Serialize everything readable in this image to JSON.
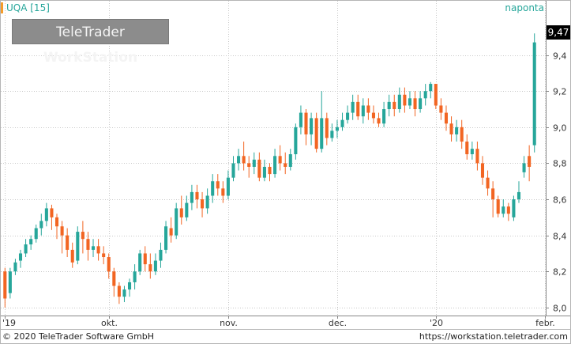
{
  "header": {
    "symbol": "UQA [15]",
    "period": "naponta",
    "logo_light": "TeleTrader",
    "logo_bold": "WorkStation",
    "last_price": "9,47"
  },
  "footer": {
    "copyright": "© 2020 TeleTrader Software GmbH",
    "url": "https://workstation.teletrader.com"
  },
  "colors": {
    "up": "#26a69a",
    "down": "#f26522",
    "grid": "#c8c8c8"
  },
  "chart_data": {
    "type": "candlestick",
    "ylim": [
      7.96,
      9.67
    ],
    "yticks": [
      "8,0",
      "8,2",
      "8,4",
      "8,6",
      "8,8",
      "9,0",
      "9,2",
      "9,4"
    ],
    "ytick_values": [
      8.0,
      8.2,
      8.4,
      8.6,
      8.8,
      9.0,
      9.2,
      9.4
    ],
    "xtick_labels": [
      "'19",
      "okt.",
      "nov.",
      "dec.",
      "'20",
      "febr."
    ],
    "xtick_index": [
      0,
      20,
      43,
      64,
      83,
      104
    ],
    "candles": [
      [
        8.2,
        8.05,
        8.22,
        8.0
      ],
      [
        8.08,
        8.2,
        8.22,
        8.05
      ],
      [
        8.2,
        8.25,
        8.27,
        8.18
      ],
      [
        8.26,
        8.3,
        8.32,
        8.22
      ],
      [
        8.3,
        8.35,
        8.38,
        8.28
      ],
      [
        8.35,
        8.38,
        8.4,
        8.32
      ],
      [
        8.38,
        8.44,
        8.46,
        8.36
      ],
      [
        8.44,
        8.48,
        8.52,
        8.4
      ],
      [
        8.48,
        8.55,
        8.58,
        8.45
      ],
      [
        8.55,
        8.5,
        8.57,
        8.43
      ],
      [
        8.5,
        8.45,
        8.52,
        8.38
      ],
      [
        8.45,
        8.4,
        8.48,
        8.3
      ],
      [
        8.4,
        8.32,
        8.44,
        8.28
      ],
      [
        8.32,
        8.25,
        8.36,
        8.22
      ],
      [
        8.26,
        8.42,
        8.45,
        8.24
      ],
      [
        8.42,
        8.38,
        8.48,
        8.3
      ],
      [
        8.38,
        8.32,
        8.42,
        8.26
      ],
      [
        8.32,
        8.34,
        8.38,
        8.28
      ],
      [
        8.34,
        8.3,
        8.38,
        8.26
      ],
      [
        8.3,
        8.28,
        8.34,
        8.24
      ],
      [
        8.28,
        8.2,
        8.3,
        8.16
      ],
      [
        8.2,
        8.12,
        8.22,
        8.06
      ],
      [
        8.12,
        8.06,
        8.14,
        8.02
      ],
      [
        8.06,
        8.1,
        8.12,
        8.03
      ],
      [
        8.1,
        8.14,
        8.16,
        8.06
      ],
      [
        8.14,
        8.2,
        8.24,
        8.1
      ],
      [
        8.2,
        8.3,
        8.32,
        8.18
      ],
      [
        8.3,
        8.24,
        8.34,
        8.2
      ],
      [
        8.24,
        8.2,
        8.3,
        8.16
      ],
      [
        8.2,
        8.26,
        8.3,
        8.18
      ],
      [
        8.26,
        8.32,
        8.36,
        8.22
      ],
      [
        8.32,
        8.45,
        8.48,
        8.3
      ],
      [
        8.44,
        8.4,
        8.5,
        8.36
      ],
      [
        8.4,
        8.55,
        8.58,
        8.38
      ],
      [
        8.55,
        8.5,
        8.62,
        8.46
      ],
      [
        8.5,
        8.58,
        8.62,
        8.48
      ],
      [
        8.58,
        8.64,
        8.68,
        8.54
      ],
      [
        8.64,
        8.6,
        8.68,
        8.55
      ],
      [
        8.6,
        8.55,
        8.64,
        8.5
      ],
      [
        8.55,
        8.62,
        8.66,
        8.52
      ],
      [
        8.62,
        8.7,
        8.74,
        8.58
      ],
      [
        8.7,
        8.66,
        8.74,
        8.62
      ],
      [
        8.66,
        8.62,
        8.7,
        8.58
      ],
      [
        8.62,
        8.72,
        8.76,
        8.6
      ],
      [
        8.72,
        8.8,
        8.84,
        8.7
      ],
      [
        8.8,
        8.84,
        8.88,
        8.76
      ],
      [
        8.84,
        8.8,
        8.92,
        8.76
      ],
      [
        8.8,
        8.78,
        8.84,
        8.72
      ],
      [
        8.78,
        8.82,
        8.86,
        8.74
      ],
      [
        8.82,
        8.72,
        8.86,
        8.7
      ],
      [
        8.72,
        8.78,
        8.82,
        8.7
      ],
      [
        8.78,
        8.74,
        8.8,
        8.7
      ],
      [
        8.74,
        8.84,
        8.88,
        8.72
      ],
      [
        8.84,
        8.8,
        8.9,
        8.76
      ],
      [
        8.8,
        8.78,
        8.86,
        8.74
      ],
      [
        8.78,
        8.85,
        8.88,
        8.76
      ],
      [
        8.85,
        9.0,
        9.02,
        8.82
      ],
      [
        9.0,
        9.08,
        9.12,
        8.96
      ],
      [
        9.08,
        8.96,
        9.1,
        8.9
      ],
      [
        8.96,
        9.05,
        9.08,
        8.9
      ],
      [
        9.05,
        8.88,
        9.08,
        8.86
      ],
      [
        8.88,
        9.05,
        9.2,
        8.86
      ],
      [
        9.05,
        8.94,
        9.08,
        8.9
      ],
      [
        8.94,
        8.98,
        9.02,
        8.92
      ],
      [
        8.98,
        9.0,
        9.04,
        8.94
      ],
      [
        9.0,
        9.04,
        9.08,
        8.98
      ],
      [
        9.04,
        9.08,
        9.12,
        9.02
      ],
      [
        9.08,
        9.14,
        9.18,
        9.04
      ],
      [
        9.14,
        9.06,
        9.18,
        9.04
      ],
      [
        9.06,
        9.12,
        9.16,
        9.02
      ],
      [
        9.12,
        9.08,
        9.16,
        9.04
      ],
      [
        9.08,
        9.05,
        9.12,
        9.02
      ],
      [
        9.05,
        9.02,
        9.08,
        9.0
      ],
      [
        9.02,
        9.1,
        9.14,
        9.0
      ],
      [
        9.1,
        9.14,
        9.18,
        9.06
      ],
      [
        9.14,
        9.1,
        9.18,
        9.06
      ],
      [
        9.1,
        9.18,
        9.22,
        9.08
      ],
      [
        9.18,
        9.12,
        9.22,
        9.08
      ],
      [
        9.12,
        9.16,
        9.2,
        9.1
      ],
      [
        9.16,
        9.1,
        9.2,
        9.06
      ],
      [
        9.1,
        9.16,
        9.2,
        9.08
      ],
      [
        9.16,
        9.2,
        9.24,
        9.12
      ],
      [
        9.2,
        9.24,
        9.25,
        9.16
      ],
      [
        9.24,
        9.12,
        9.24,
        9.1
      ],
      [
        9.12,
        9.08,
        9.16,
        9.04
      ],
      [
        9.08,
        9.02,
        9.12,
        8.98
      ],
      [
        9.02,
        8.96,
        9.06,
        8.92
      ],
      [
        8.96,
        9.0,
        9.04,
        8.92
      ],
      [
        9.0,
        8.92,
        9.04,
        8.88
      ],
      [
        8.92,
        8.85,
        8.96,
        8.82
      ],
      [
        8.85,
        8.88,
        8.92,
        8.82
      ],
      [
        8.88,
        8.8,
        8.92,
        8.76
      ],
      [
        8.8,
        8.72,
        8.84,
        8.68
      ],
      [
        8.72,
        8.66,
        8.76,
        8.62
      ],
      [
        8.66,
        8.6,
        8.7,
        8.5
      ],
      [
        8.6,
        8.52,
        8.62,
        8.5
      ],
      [
        8.52,
        8.56,
        8.6,
        8.5
      ],
      [
        8.56,
        8.52,
        8.58,
        8.48
      ],
      [
        8.5,
        8.6,
        8.62,
        8.48
      ],
      [
        8.6,
        8.64,
        8.7,
        8.58
      ],
      [
        8.75,
        8.8,
        8.84,
        8.72
      ],
      [
        8.84,
        8.78,
        8.9,
        8.7
      ],
      [
        8.9,
        9.47,
        9.52,
        8.86
      ]
    ]
  }
}
